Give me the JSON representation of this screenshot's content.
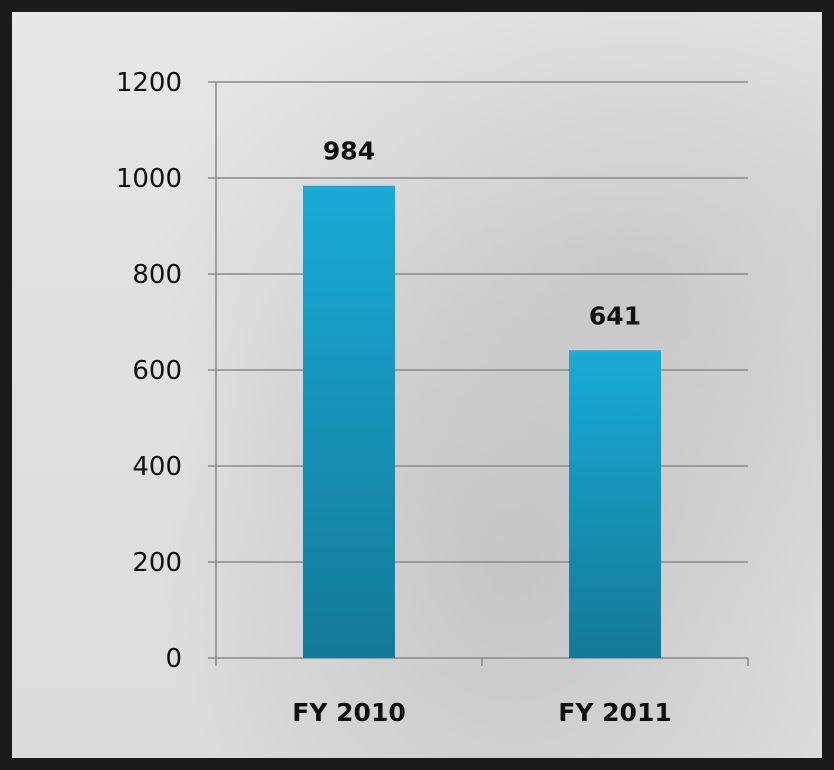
{
  "chart_data": {
    "type": "bar",
    "categories": [
      "FY 2010",
      "FY 2011"
    ],
    "values": [
      984,
      641
    ],
    "data_labels": [
      "984",
      "641"
    ],
    "ylim": [
      0,
      1200
    ],
    "yticks": [
      0,
      200,
      400,
      600,
      800,
      1000,
      1200
    ],
    "grid": true,
    "bar_color": "#1694be",
    "bar_color_light": "#1aaad8",
    "bar_color_dark": "#137a97"
  }
}
